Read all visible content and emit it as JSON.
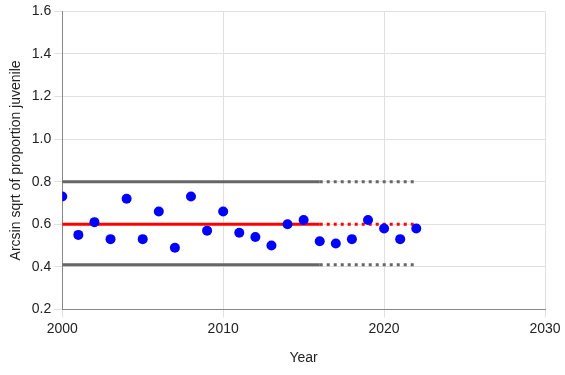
{
  "chart_data": {
    "type": "scatter",
    "x_label": "Year",
    "y_label": "Arcsin sqrt of proportion juvenile",
    "xlim": [
      2000,
      2030
    ],
    "xticks": [
      2000,
      2010,
      2020,
      2030
    ],
    "ylim": [
      0.2,
      1.6
    ],
    "yticks": [
      0.2,
      0.4,
      0.6,
      0.8,
      {
        "value": 1,
        "label": "1.0"
      },
      1.2,
      1.4,
      1.6
    ],
    "grid": true,
    "series": [
      {
        "type": "scatter",
        "color": "#0000ff",
        "marker": "circle",
        "x": [
          2000,
          2001,
          2002,
          2003,
          2004,
          2005,
          2006,
          2007,
          2008,
          2009,
          2010,
          2011,
          2012,
          2013,
          2014,
          2015,
          2016,
          2017,
          2018,
          2019,
          2020,
          2021,
          2022
        ],
        "values": [
          0.73,
          0.55,
          0.61,
          0.53,
          0.72,
          0.53,
          0.66,
          0.49,
          0.73,
          0.57,
          0.66,
          0.56,
          0.54,
          0.5,
          0.6,
          0.62,
          0.52,
          0.51,
          0.53,
          0.62,
          0.58,
          0.53,
          0.58
        ]
      },
      {
        "type": "line",
        "color": "#ff0000",
        "line_style": "solid",
        "x": [
          2000,
          2016
        ],
        "values": [
          0.6,
          0.6
        ]
      },
      {
        "type": "line",
        "color": "#ff0000",
        "line_style": "dotted",
        "x": [
          2016,
          2022
        ],
        "values": [
          0.6,
          0.6
        ]
      },
      {
        "type": "line",
        "color": "#666666",
        "line_style": "solid",
        "x": [
          2000,
          2016
        ],
        "values": [
          0.8,
          0.8
        ]
      },
      {
        "type": "line",
        "color": "#666666",
        "line_style": "dotted",
        "x": [
          2016,
          2022
        ],
        "values": [
          0.8,
          0.8
        ]
      },
      {
        "type": "line",
        "color": "#666666",
        "line_style": "solid",
        "x": [
          2000,
          2016
        ],
        "values": [
          0.41,
          0.41
        ]
      },
      {
        "type": "line",
        "color": "#666666",
        "line_style": "dotted",
        "x": [
          2016,
          2022
        ],
        "values": [
          0.41,
          0.41
        ]
      }
    ]
  }
}
